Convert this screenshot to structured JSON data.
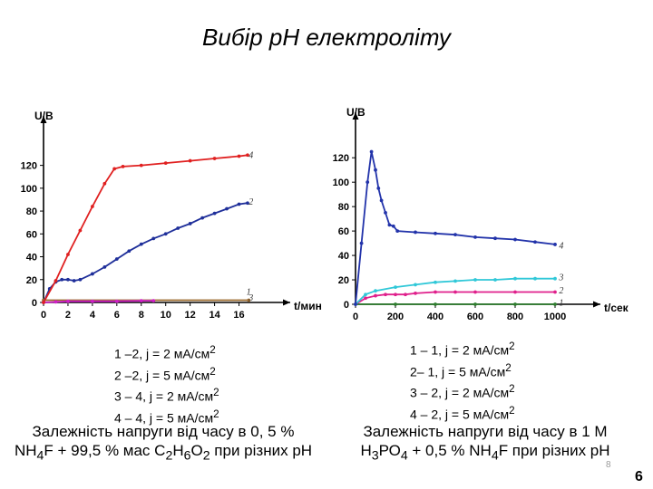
{
  "slide": {
    "title": "Вибір рН електроліту",
    "page_small": "8",
    "page_big": "6"
  },
  "left": {
    "legend_lines": [
      {
        "text": "1 –2, j = 2 мА/см",
        "sup": "2"
      },
      {
        "text": "2 –2, j = 5 мА/см",
        "sup": "2"
      },
      {
        "text": "3 – 4, j = 2 мА/см",
        "sup": "2"
      },
      {
        "text": "4 – 4, j = 5 мА/см",
        "sup": "2"
      }
    ],
    "caption": {
      "line1": "Залежність напруги від часу в 0, 5 %",
      "l2_a": "NH",
      "l2_b": "4",
      "l2_c": "F + 99,5 % мас С",
      "l2_d": "2",
      "l2_e": "Н",
      "l2_f": "6",
      "l2_g": "О",
      "l2_h": "2",
      "l2_i": " при різних рН"
    }
  },
  "right": {
    "legend_lines": [
      {
        "text": "1 – 1, j = 2  мА/см",
        "sup": "2"
      },
      {
        "text": "2– 1, j = 5 мА/см",
        "sup": "2"
      },
      {
        "text": "3 – 2, j = 2 мА/см",
        "sup": "2"
      },
      {
        "text": "4 – 2, j = 5 мА/см",
        "sup": "2"
      }
    ],
    "caption": {
      "line1": "Залежність напруги від часу в 1 М",
      "l2_a": "Н",
      "l2_b": "3",
      "l2_c": "РО",
      "l2_d": "4",
      "l2_e": " + 0,5 % NH",
      "l2_f": "4",
      "l2_g": "F при різних рН"
    }
  },
  "chart_data": [
    {
      "type": "line",
      "title": "",
      "xlabel": "t/мин",
      "ylabel": "U/B",
      "xlim": [
        0,
        17
      ],
      "ylim": [
        0,
        130
      ],
      "xticks": [
        0,
        2,
        4,
        6,
        8,
        10,
        12,
        14,
        16
      ],
      "yticks": [
        0,
        20,
        40,
        60,
        80,
        100,
        120
      ],
      "series": [
        {
          "name": "1",
          "color": "#9b6a2e",
          "x": [
            0,
            16.8
          ],
          "y": [
            2,
            2
          ]
        },
        {
          "name": "2",
          "color": "#1f2f9a",
          "x": [
            0,
            0.5,
            1,
            1.5,
            2,
            2.5,
            3,
            4,
            5,
            6,
            7,
            8,
            9,
            10,
            11,
            12,
            13,
            14,
            15,
            16,
            16.7
          ],
          "y": [
            0,
            12,
            18,
            20,
            20,
            19,
            20,
            25,
            31,
            38,
            45,
            51,
            56,
            60,
            65,
            69,
            74,
            78,
            82,
            86,
            87
          ]
        },
        {
          "name": "3",
          "color": "#d020c8",
          "x": [
            0,
            1,
            2,
            4,
            6,
            8,
            9
          ],
          "y": [
            0,
            0.5,
            1,
            1,
            1,
            1.5,
            1.5
          ]
        },
        {
          "name": "4",
          "color": "#e02020",
          "x": [
            0,
            1,
            2,
            3,
            4,
            5,
            5.8,
            6.5,
            8,
            10,
            12,
            14,
            16,
            16.7
          ],
          "y": [
            0,
            19,
            42,
            63,
            84,
            104,
            117,
            119,
            120,
            122,
            124,
            126,
            128,
            129
          ]
        }
      ],
      "curve_labels": [
        {
          "text": "4",
          "x": 16.8,
          "y": 129
        },
        {
          "text": "2",
          "x": 16.8,
          "y": 88
        },
        {
          "text": "1",
          "x": 16.6,
          "y": 9
        },
        {
          "text": "3",
          "x": 16.8,
          "y": 4
        }
      ]
    },
    {
      "type": "line",
      "title": "",
      "xlabel": "t/сек",
      "ylabel": "U/B",
      "xlim": [
        0,
        1000
      ],
      "ylim": [
        0,
        135
      ],
      "xticks": [
        0,
        200,
        400,
        600,
        800,
        1000
      ],
      "yticks": [
        0,
        20,
        40,
        60,
        80,
        100,
        120
      ],
      "series": [
        {
          "name": "1",
          "color": "#2e7d2e",
          "x": [
            0,
            200,
            400,
            600,
            800,
            1000
          ],
          "y": [
            0,
            0,
            0,
            0,
            0,
            0
          ]
        },
        {
          "name": "2",
          "color": "#e0208c",
          "x": [
            0,
            50,
            100,
            150,
            200,
            250,
            300,
            400,
            500,
            600,
            800,
            1000
          ],
          "y": [
            0,
            5,
            7,
            8,
            8,
            8,
            9,
            10,
            10,
            10,
            10,
            10
          ]
        },
        {
          "name": "3",
          "color": "#30c8d8",
          "x": [
            0,
            50,
            100,
            200,
            300,
            400,
            500,
            600,
            700,
            800,
            900,
            1000
          ],
          "y": [
            0,
            8,
            11,
            14,
            16,
            18,
            19,
            20,
            20,
            21,
            21,
            21
          ]
        },
        {
          "name": "4",
          "color": "#2233aa",
          "x": [
            0,
            30,
            60,
            80,
            100,
            115,
            130,
            150,
            170,
            190,
            210,
            300,
            400,
            500,
            600,
            700,
            800,
            900,
            1000
          ],
          "y": [
            0,
            50,
            100,
            125,
            110,
            95,
            85,
            75,
            65,
            64,
            60,
            59,
            58,
            57,
            55,
            54,
            53,
            51,
            49
          ]
        }
      ],
      "curve_labels": [
        {
          "text": "4",
          "x": 1020,
          "y": 48
        },
        {
          "text": "3",
          "x": 1020,
          "y": 22
        },
        {
          "text": "2",
          "x": 1020,
          "y": 11
        },
        {
          "text": "1",
          "x": 1020,
          "y": 1
        }
      ]
    }
  ]
}
